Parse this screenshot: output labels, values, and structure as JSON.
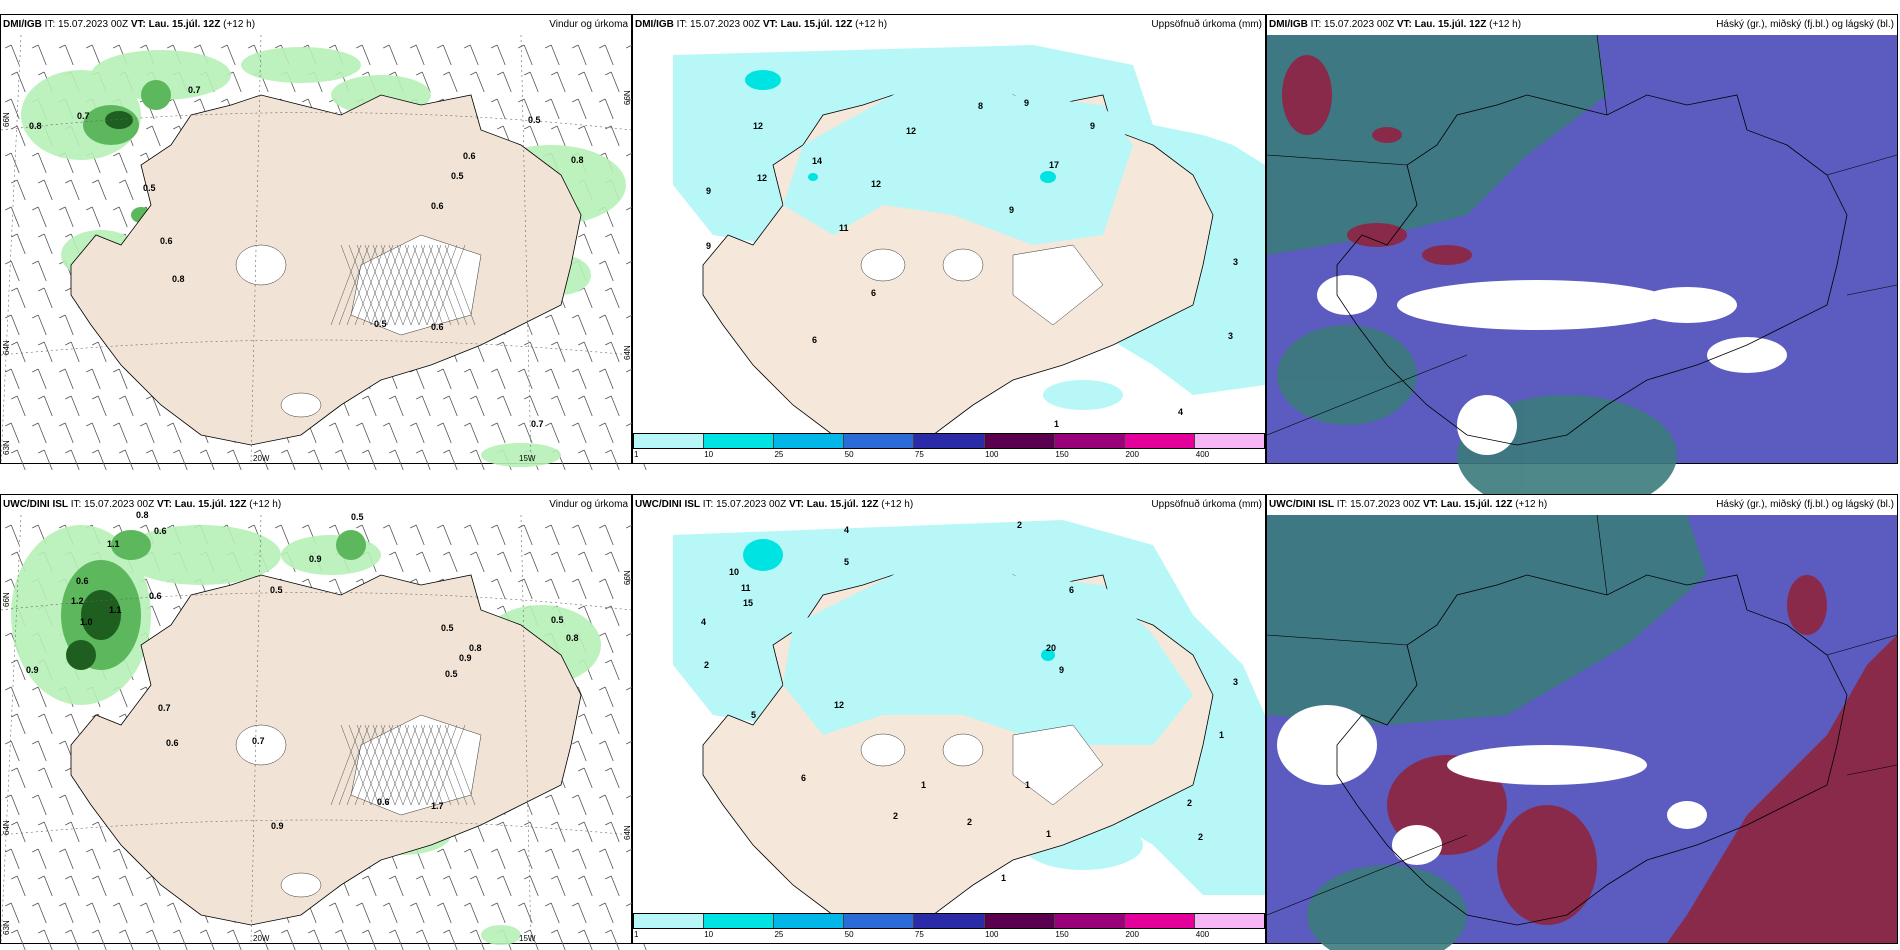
{
  "panels": [
    {
      "model": "DMI/IGB",
      "it": "IT: 15.07.2023 00Z",
      "vt_label": "VT: Lau. 15.júl. 12Z",
      "lead": "(+12 h)",
      "right_title": "Vindur og úrkoma"
    },
    {
      "model": "DMI/IGB",
      "it": "IT: 15.07.2023 00Z",
      "vt_label": "VT: Lau. 15.júl. 12Z",
      "lead": "(+12 h)",
      "right_title": "Uppsöfnuð úrkoma (mm)"
    },
    {
      "model": "DMI/IGB",
      "it": "IT: 15.07.2023 00Z",
      "vt_label": "VT: Lau. 15.júl. 12Z",
      "lead": "(+12 h)",
      "right_title": "Háský (gr.), miðský (fj.bl.) og lágský (bl.)"
    },
    {
      "model": "UWC/DINI ISL",
      "it": "IT: 15.07.2023 00Z",
      "vt_label": "VT: Lau. 15.júl. 12Z",
      "lead": "(+12 h)",
      "right_title": "Vindur og úrkoma"
    },
    {
      "model": "UWC/DINI ISL",
      "it": "IT: 15.07.2023 00Z",
      "vt_label": "VT: Lau. 15.júl. 12Z",
      "lead": "(+12 h)",
      "right_title": "Uppsöfnuð úrkoma (mm)"
    },
    {
      "model": "UWC/DINI ISL",
      "it": "IT: 15.07.2023 00Z",
      "vt_label": "VT: Lau. 15.júl. 12Z",
      "lead": "(+12 h)",
      "right_title": "Háský (gr.), miðský (fj.bl.) og lágský (bl.)"
    }
  ],
  "axis_labels": {
    "lat66": "66N",
    "lat64": "64N",
    "lat63": "63N",
    "lon20": "20W",
    "lon15": "15W"
  },
  "colorbar": {
    "colors": [
      "#b7f7f7",
      "#00e3e3",
      "#00b7e7",
      "#2b6bd7",
      "#2b2ba7",
      "#5b004f",
      "#9b007b",
      "#e3009b",
      "#f7b7f7"
    ],
    "ticks": [
      "1",
      "10",
      "25",
      "50",
      "75",
      "100",
      "150",
      "200",
      "400"
    ]
  },
  "precip_labels_top": [
    {
      "t": "0.8",
      "x": 28,
      "y": 128
    },
    {
      "t": "0.7",
      "x": 76,
      "y": 118
    },
    {
      "t": "0.7",
      "x": 187,
      "y": 92
    },
    {
      "t": "0.5",
      "x": 527,
      "y": 122
    },
    {
      "t": "0.6",
      "x": 462,
      "y": 158
    },
    {
      "t": "0.5",
      "x": 450,
      "y": 178
    },
    {
      "t": "0.6",
      "x": 430,
      "y": 208
    },
    {
      "t": "0.8",
      "x": 570,
      "y": 162
    },
    {
      "t": "0.6",
      "x": 159,
      "y": 243
    },
    {
      "t": "0.5",
      "x": 142,
      "y": 190
    },
    {
      "t": "0.8",
      "x": 171,
      "y": 281
    },
    {
      "t": "0.5",
      "x": 373,
      "y": 326
    },
    {
      "t": "0.6",
      "x": 430,
      "y": 329
    },
    {
      "t": "0.7",
      "x": 530,
      "y": 426
    }
  ],
  "precip_labels_bottom": [
    {
      "t": "0.8",
      "x": 135,
      "y": 517
    },
    {
      "t": "0.6",
      "x": 153,
      "y": 533
    },
    {
      "t": "0.5",
      "x": 350,
      "y": 519
    },
    {
      "t": "0.9",
      "x": 308,
      "y": 561
    },
    {
      "t": "1.1",
      "x": 106,
      "y": 546
    },
    {
      "t": "0.6",
      "x": 75,
      "y": 583
    },
    {
      "t": "1.2",
      "x": 70,
      "y": 603
    },
    {
      "t": "1.0",
      "x": 79,
      "y": 624
    },
    {
      "t": "1.1",
      "x": 108,
      "y": 612
    },
    {
      "t": "0.6",
      "x": 148,
      "y": 598
    },
    {
      "t": "0.5",
      "x": 269,
      "y": 592
    },
    {
      "t": "0.9",
      "x": 25,
      "y": 672
    },
    {
      "t": "0.7",
      "x": 157,
      "y": 710
    },
    {
      "t": "0.6",
      "x": 165,
      "y": 745
    },
    {
      "t": "0.7",
      "x": 251,
      "y": 743
    },
    {
      "t": "0.5",
      "x": 440,
      "y": 630
    },
    {
      "t": "0.8",
      "x": 468,
      "y": 650
    },
    {
      "t": "0.9",
      "x": 458,
      "y": 660
    },
    {
      "t": "0.5",
      "x": 444,
      "y": 676
    },
    {
      "t": "0.6",
      "x": 376,
      "y": 804
    },
    {
      "t": "1.7",
      "x": 430,
      "y": 808
    },
    {
      "t": "0.9",
      "x": 270,
      "y": 828
    },
    {
      "t": "0.5",
      "x": 550,
      "y": 622
    },
    {
      "t": "0.8",
      "x": 565,
      "y": 640
    }
  ],
  "accum_labels_top": [
    {
      "t": "12",
      "x": 752,
      "y": 128
    },
    {
      "t": "12",
      "x": 756,
      "y": 180
    },
    {
      "t": "14",
      "x": 811,
      "y": 163
    },
    {
      "t": "9",
      "x": 705,
      "y": 193
    },
    {
      "t": "11",
      "x": 838,
      "y": 230
    },
    {
      "t": "12",
      "x": 870,
      "y": 186
    },
    {
      "t": "12",
      "x": 905,
      "y": 133
    },
    {
      "t": "8",
      "x": 977,
      "y": 108
    },
    {
      "t": "9",
      "x": 1023,
      "y": 105
    },
    {
      "t": "9",
      "x": 1089,
      "y": 128
    },
    {
      "t": "17",
      "x": 1048,
      "y": 167
    },
    {
      "t": "9",
      "x": 1008,
      "y": 212
    },
    {
      "t": "9",
      "x": 705,
      "y": 248
    },
    {
      "t": "6",
      "x": 870,
      "y": 295
    },
    {
      "t": "6",
      "x": 811,
      "y": 342
    },
    {
      "t": "3",
      "x": 1232,
      "y": 264
    },
    {
      "t": "3",
      "x": 1227,
      "y": 338
    },
    {
      "t": "4",
      "x": 1177,
      "y": 414
    },
    {
      "t": "1",
      "x": 1053,
      "y": 426
    }
  ],
  "accum_labels_bottom": [
    {
      "t": "2",
      "x": 1016,
      "y": 527
    },
    {
      "t": "4",
      "x": 843,
      "y": 532
    },
    {
      "t": "5",
      "x": 843,
      "y": 564
    },
    {
      "t": "10",
      "x": 728,
      "y": 574
    },
    {
      "t": "11",
      "x": 740,
      "y": 590
    },
    {
      "t": "15",
      "x": 742,
      "y": 605
    },
    {
      "t": "4",
      "x": 700,
      "y": 624
    },
    {
      "t": "2",
      "x": 703,
      "y": 667
    },
    {
      "t": "12",
      "x": 833,
      "y": 707
    },
    {
      "t": "5",
      "x": 750,
      "y": 717
    },
    {
      "t": "20",
      "x": 1045,
      "y": 650
    },
    {
      "t": "6",
      "x": 1068,
      "y": 592
    },
    {
      "t": "9",
      "x": 1058,
      "y": 672
    },
    {
      "t": "1",
      "x": 1024,
      "y": 787
    },
    {
      "t": "2",
      "x": 892,
      "y": 818
    },
    {
      "t": "1",
      "x": 920,
      "y": 787
    },
    {
      "t": "2",
      "x": 966,
      "y": 824
    },
    {
      "t": "1",
      "x": 1045,
      "y": 836
    },
    {
      "t": "3",
      "x": 1232,
      "y": 684
    },
    {
      "t": "2",
      "x": 1197,
      "y": 839
    },
    {
      "t": "2",
      "x": 1186,
      "y": 805
    },
    {
      "t": "1",
      "x": 1218,
      "y": 737
    },
    {
      "t": "6",
      "x": 800,
      "y": 780
    },
    {
      "t": "1",
      "x": 1000,
      "y": 880
    }
  ]
}
